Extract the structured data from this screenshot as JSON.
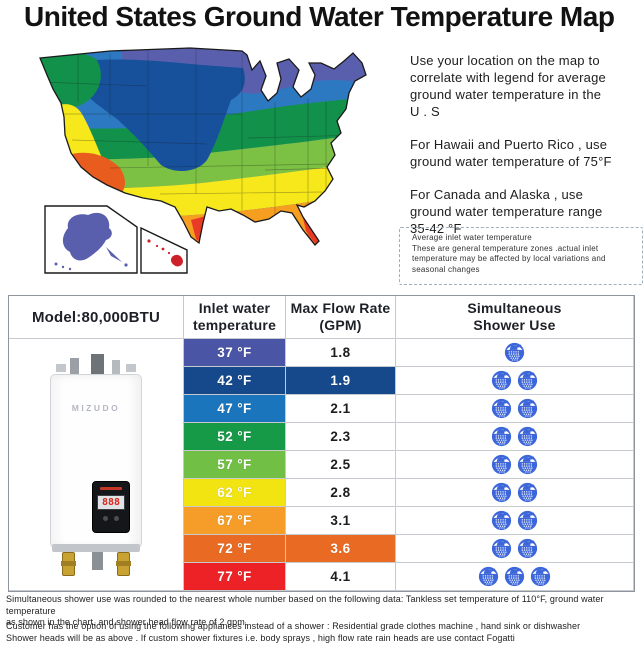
{
  "title": "United States Ground Water Temperature Map",
  "map": {
    "description": "US ground water temperature zone map with Alaska and Hawaii insets",
    "zone_colors": {
      "purple": "#5a5fad",
      "navy": "#17519c",
      "blue": "#2d79c1",
      "dark_green": "#12914b",
      "light_green": "#7cc143",
      "yellow": "#f6e81b",
      "orange": "#f59e20",
      "deep_orange": "#e85c1e",
      "red": "#e93a25",
      "alaska": "#5a5fad",
      "hawaii": "#cc2128"
    }
  },
  "instructions": {
    "p1": "Use your location on the map to\ncorrelate with legend for average\nground water temperature in the\nU . S",
    "p2": "For Hawaii and Puerto Rico , use\nground water temperature of 75°F",
    "p3": "For Canada and Alaska , use\nground water temperature range\n35-42 °F"
  },
  "note": "Average inlet water temperature\nThese are general temperature zones .actual inlet\ntemperature may be affected by local variations and\nseasonal changes",
  "table": {
    "col_model": "Model:80,000BTU",
    "col_temp": "Inlet water\ntemperature",
    "col_flow": "Max Flow Rate\n(GPM)",
    "col_shower": "Simultaneous\nShower Use",
    "heater_brand": "MIZUDO",
    "heater_display": "888",
    "shower_icon_color": "#3c66d9",
    "rows": [
      {
        "temp": "37 °F",
        "color": "#4a55a5",
        "flow": "1.8",
        "showers": 1,
        "flow_highlight": false
      },
      {
        "temp": "42 °F",
        "color": "#15498c",
        "flow": "1.9",
        "showers": 2,
        "flow_highlight": true
      },
      {
        "temp": "47 °F",
        "color": "#1b75bc",
        "flow": "2.1",
        "showers": 2,
        "flow_highlight": false
      },
      {
        "temp": "52 °F",
        "color": "#169a47",
        "flow": "2.3",
        "showers": 2,
        "flow_highlight": false
      },
      {
        "temp": "57 °F",
        "color": "#71bf44",
        "flow": "2.5",
        "showers": 2,
        "flow_highlight": false
      },
      {
        "temp": "62 °F",
        "color": "#f2e410",
        "flow": "2.8",
        "showers": 2,
        "flow_highlight": false
      },
      {
        "temp": "67 °F",
        "color": "#f59d28",
        "flow": "3.1",
        "showers": 2,
        "flow_highlight": false
      },
      {
        "temp": "72 °F",
        "color": "#e96b23",
        "flow": "3.6",
        "showers": 2,
        "flow_highlight": true
      },
      {
        "temp": "77 °F",
        "color": "#ec2227",
        "flow": "4.1",
        "showers": 3,
        "flow_highlight": false
      }
    ]
  },
  "footnotes": {
    "f1": "Simultaneous shower use was rounded to the nearest whole number based on the following data: Tankless set temperature of 110°F, ground water temperature\nas shown in the chart, and shower head flow rate of 2 gpm.",
    "f2": "Customer has the option of using the following appliances instead of a shower : Residential grade clothes machine , hand sink or dishwasher\nShower heads will be as above . If custom shower fixtures i.e. body sprays , high flow rate rain heads are use contact Fogatti"
  }
}
